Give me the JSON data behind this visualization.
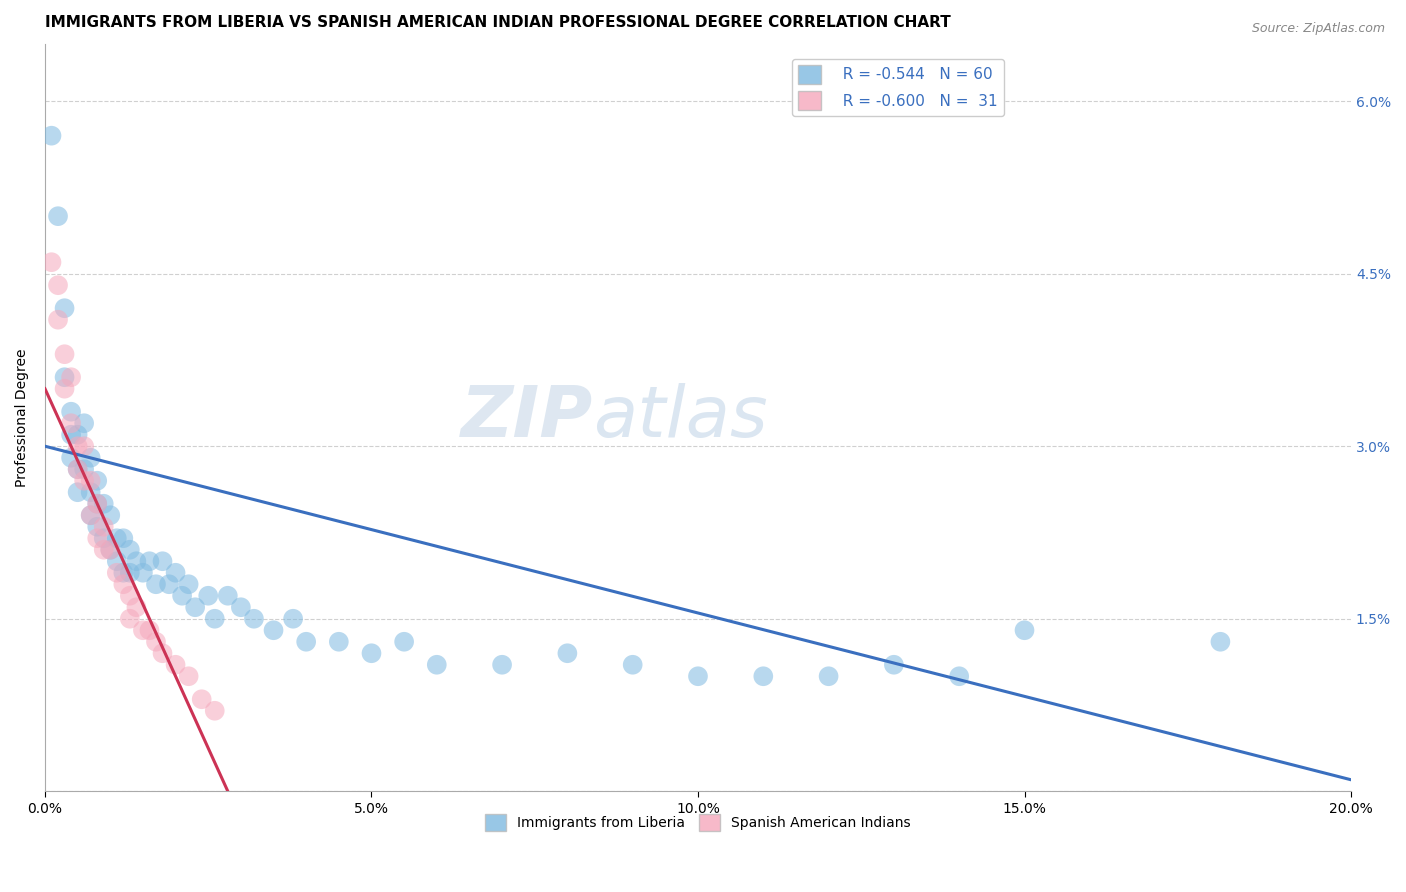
{
  "title": "IMMIGRANTS FROM LIBERIA VS SPANISH AMERICAN INDIAN PROFESSIONAL DEGREE CORRELATION CHART",
  "source": "Source: ZipAtlas.com",
  "ylabel": "Professional Degree",
  "xlim": [
    0.0,
    0.2
  ],
  "ylim": [
    0.0,
    0.065
  ],
  "xticks": [
    0.0,
    0.05,
    0.1,
    0.15,
    0.2
  ],
  "xtick_labels": [
    "0.0%",
    "5.0%",
    "10.0%",
    "15.0%",
    "20.0%"
  ],
  "yticks": [
    0.0,
    0.015,
    0.03,
    0.045,
    0.06
  ],
  "ytick_labels_left": [
    "",
    "",
    "",
    "",
    ""
  ],
  "ytick_labels_right": [
    "",
    "1.5%",
    "3.0%",
    "4.5%",
    "6.0%"
  ],
  "blue_color": "#7fb9e0",
  "pink_color": "#f5a8bc",
  "blue_line_color": "#3a6fbf",
  "pink_line_color": "#cc3355",
  "legend_r1": "R = -0.544",
  "legend_n1": "N = 60",
  "legend_r2": "R = -0.600",
  "legend_n2": "N =  31",
  "watermark_zip": "ZIP",
  "watermark_atlas": "atlas",
  "blue_x": [
    0.001,
    0.002,
    0.003,
    0.003,
    0.004,
    0.004,
    0.004,
    0.005,
    0.005,
    0.005,
    0.006,
    0.006,
    0.007,
    0.007,
    0.007,
    0.008,
    0.008,
    0.008,
    0.009,
    0.009,
    0.01,
    0.01,
    0.011,
    0.011,
    0.012,
    0.012,
    0.013,
    0.013,
    0.014,
    0.015,
    0.016,
    0.017,
    0.018,
    0.019,
    0.02,
    0.021,
    0.022,
    0.023,
    0.025,
    0.026,
    0.028,
    0.03,
    0.032,
    0.035,
    0.038,
    0.04,
    0.045,
    0.05,
    0.055,
    0.06,
    0.07,
    0.08,
    0.09,
    0.1,
    0.11,
    0.12,
    0.13,
    0.14,
    0.15,
    0.18
  ],
  "blue_y": [
    0.057,
    0.05,
    0.042,
    0.036,
    0.033,
    0.031,
    0.029,
    0.031,
    0.028,
    0.026,
    0.032,
    0.028,
    0.029,
    0.026,
    0.024,
    0.027,
    0.025,
    0.023,
    0.025,
    0.022,
    0.024,
    0.021,
    0.022,
    0.02,
    0.022,
    0.019,
    0.021,
    0.019,
    0.02,
    0.019,
    0.02,
    0.018,
    0.02,
    0.018,
    0.019,
    0.017,
    0.018,
    0.016,
    0.017,
    0.015,
    0.017,
    0.016,
    0.015,
    0.014,
    0.015,
    0.013,
    0.013,
    0.012,
    0.013,
    0.011,
    0.011,
    0.012,
    0.011,
    0.01,
    0.01,
    0.01,
    0.011,
    0.01,
    0.014,
    0.013
  ],
  "pink_x": [
    0.001,
    0.002,
    0.002,
    0.003,
    0.003,
    0.004,
    0.004,
    0.005,
    0.005,
    0.006,
    0.006,
    0.007,
    0.007,
    0.008,
    0.008,
    0.009,
    0.009,
    0.01,
    0.011,
    0.012,
    0.013,
    0.013,
    0.014,
    0.015,
    0.016,
    0.017,
    0.018,
    0.02,
    0.022,
    0.024,
    0.026
  ],
  "pink_y": [
    0.046,
    0.044,
    0.041,
    0.038,
    0.035,
    0.036,
    0.032,
    0.03,
    0.028,
    0.03,
    0.027,
    0.027,
    0.024,
    0.025,
    0.022,
    0.023,
    0.021,
    0.021,
    0.019,
    0.018,
    0.017,
    0.015,
    0.016,
    0.014,
    0.014,
    0.013,
    0.012,
    0.011,
    0.01,
    0.008,
    0.007
  ],
  "blue_line_x": [
    0.0,
    0.2
  ],
  "blue_line_y": [
    0.03,
    0.001
  ],
  "pink_line_x": [
    0.0,
    0.028
  ],
  "pink_line_y": [
    0.035,
    0.0
  ],
  "title_fontsize": 11,
  "axis_fontsize": 10,
  "tick_fontsize": 10,
  "legend_fontsize": 11
}
